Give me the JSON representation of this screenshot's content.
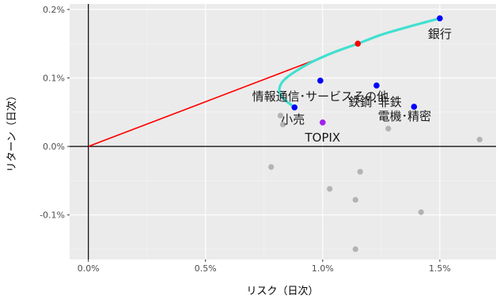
{
  "chart_data": {
    "type": "scatter",
    "title": "",
    "xlabel": "リスク（日次）",
    "ylabel": "リターン（日次）",
    "xlim": [
      -0.0008,
      0.0174
    ],
    "ylim": [
      -0.00165,
      0.00208
    ],
    "x_ticks": [
      {
        "value": 0.0,
        "label": "0.0%"
      },
      {
        "value": 0.005,
        "label": "0.5%"
      },
      {
        "value": 0.01,
        "label": "1.0%"
      },
      {
        "value": 0.015,
        "label": "1.5%"
      }
    ],
    "y_ticks": [
      {
        "value": -0.001,
        "label": "-0.1%"
      },
      {
        "value": 0.0,
        "label": "0.0%"
      },
      {
        "value": 0.001,
        "label": "0.1%"
      },
      {
        "value": 0.002,
        "label": "0.2%"
      }
    ],
    "grid": true,
    "legend": "none",
    "colors": {
      "panel": "#ebebeb",
      "grid_major": "#ffffff",
      "other_points": "#b3b3b3",
      "selected_points": "#0000ff",
      "topix": "#a020f0",
      "tangency_point": "#ff0000",
      "frontier": "#40e0d0",
      "capital_market_line": "#ff0000",
      "zero_lines": "#000000"
    },
    "series": [
      {
        "name": "other",
        "points": [
          {
            "x": 0.0082,
            "y": 0.00045
          },
          {
            "x": 0.0083,
            "y": 0.00032
          },
          {
            "x": 0.0078,
            "y": -0.0003
          },
          {
            "x": 0.0103,
            "y": -0.00062
          },
          {
            "x": 0.0114,
            "y": -0.00078
          },
          {
            "x": 0.0116,
            "y": -0.00037
          },
          {
            "x": 0.0128,
            "y": 0.00026
          },
          {
            "x": 0.0114,
            "y": -0.0015
          },
          {
            "x": 0.0142,
            "y": -0.00096
          },
          {
            "x": 0.0167,
            "y": 0.0001
          }
        ]
      },
      {
        "name": "selected",
        "points": [
          {
            "x": 0.0088,
            "y": 0.00057,
            "label": "小売"
          },
          {
            "x": 0.0099,
            "y": 0.00096,
            "label": "情報通信･サービスその他"
          },
          {
            "x": 0.0123,
            "y": 0.00089,
            "label": "鉄鋼･非鉄"
          },
          {
            "x": 0.0139,
            "y": 0.00058,
            "label": "電機･精密"
          },
          {
            "x": 0.015,
            "y": 0.00187,
            "label": "銀行"
          }
        ]
      },
      {
        "name": "TOPIX",
        "points": [
          {
            "x": 0.01,
            "y": 0.00035,
            "label": "TOPIX"
          }
        ]
      }
    ],
    "tangency_point": {
      "x": 0.0115,
      "y": 0.0015
    },
    "capital_market_line": [
      {
        "x": 0.0,
        "y": 0.0
      },
      {
        "x": 0.0115,
        "y": 0.0015
      }
    ],
    "frontier_curve": [
      {
        "x": 0.0088,
        "y": 0.00057
      },
      {
        "x": 0.0082,
        "y": 0.00075
      },
      {
        "x": 0.0083,
        "y": 0.00095
      },
      {
        "x": 0.0092,
        "y": 0.00117
      },
      {
        "x": 0.0103,
        "y": 0.00135
      },
      {
        "x": 0.0115,
        "y": 0.0015
      },
      {
        "x": 0.0125,
        "y": 0.00163
      },
      {
        "x": 0.0137,
        "y": 0.00175
      },
      {
        "x": 0.015,
        "y": 0.00187
      }
    ]
  }
}
